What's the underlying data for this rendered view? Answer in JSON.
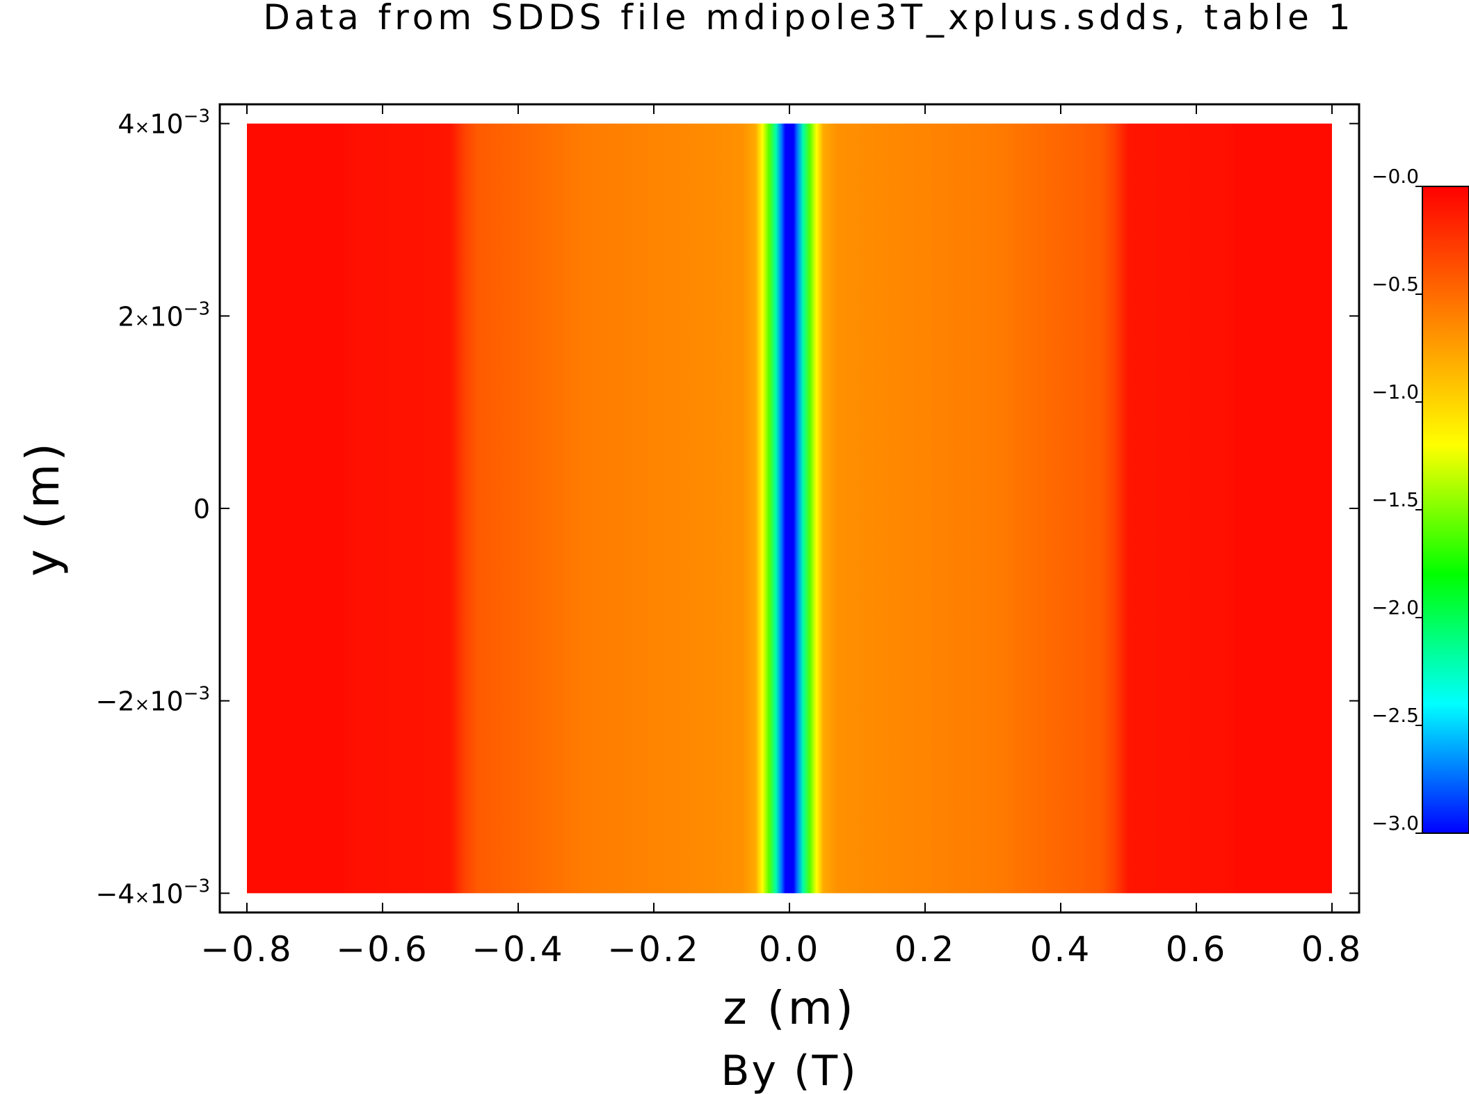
{
  "chart_data": {
    "type": "heatmap",
    "title": "Data from SDDS file mdipole3T_xplus.sdds, table 1",
    "xlabel": "z (m)",
    "ylabel": "y (m)",
    "zlabel": "By (T)",
    "xlim": [
      -0.84,
      0.84
    ],
    "ylim": [
      -0.0042,
      0.0042
    ],
    "data_extent": {
      "x": [
        -0.8,
        0.8
      ],
      "y": [
        -0.004,
        0.004
      ]
    },
    "x_ticks": [
      {
        "value": -0.8,
        "label": "−0.8"
      },
      {
        "value": -0.6,
        "label": "−0.6"
      },
      {
        "value": -0.4,
        "label": "−0.4"
      },
      {
        "value": -0.2,
        "label": "−0.2"
      },
      {
        "value": 0.0,
        "label": "0.0"
      },
      {
        "value": 0.2,
        "label": "0.2"
      },
      {
        "value": 0.4,
        "label": "0.4"
      },
      {
        "value": 0.6,
        "label": "0.6"
      },
      {
        "value": 0.8,
        "label": "0.8"
      }
    ],
    "y_ticks": [
      {
        "value": 0.004,
        "mant": "4",
        "times": "×",
        "base": "10",
        "exp": "−3"
      },
      {
        "value": 0.002,
        "mant": "2",
        "times": "×",
        "base": "10",
        "exp": "−3"
      },
      {
        "value": 0,
        "mant": "0",
        "times": "",
        "base": "",
        "exp": ""
      },
      {
        "value": -0.002,
        "mant": "−2",
        "times": "×",
        "base": "10",
        "exp": "−3"
      },
      {
        "value": -0.004,
        "mant": "−4",
        "times": "×",
        "base": "10",
        "exp": "−3"
      }
    ],
    "colorbar": {
      "range": [
        -3.0,
        0.0
      ],
      "ticks": [
        {
          "value": 0.0,
          "label": "−0.0"
        },
        {
          "value": -0.5,
          "label": "−0.5"
        },
        {
          "value": -1.0,
          "label": "−1.0"
        },
        {
          "value": -1.5,
          "label": "−1.5"
        },
        {
          "value": -2.0,
          "label": "−2.0"
        },
        {
          "value": -2.5,
          "label": "−2.5"
        },
        {
          "value": -3.0,
          "label": "−3.0"
        }
      ],
      "colors": [
        "#0000ff",
        "#00ffff",
        "#00ff00",
        "#ffff00",
        "#ff8000",
        "#ff0000"
      ]
    },
    "profile": {
      "z": [
        -0.8,
        -0.66,
        -0.65,
        -0.5,
        -0.48,
        -0.46,
        -0.4,
        -0.3,
        -0.2,
        -0.12,
        -0.07,
        -0.05,
        -0.04,
        -0.03,
        -0.02,
        -0.012,
        -0.006,
        0.0,
        0.006,
        0.012,
        0.02,
        0.03,
        0.04,
        0.05,
        0.07,
        0.12,
        0.2,
        0.3,
        0.4,
        0.46,
        0.48,
        0.5,
        0.65,
        0.66,
        0.8
      ],
      "By": [
        -0.05,
        -0.05,
        -0.07,
        -0.1,
        -0.3,
        -0.42,
        -0.48,
        -0.58,
        -0.62,
        -0.65,
        -0.68,
        -0.8,
        -1.2,
        -1.6,
        -2.2,
        -2.7,
        -3.0,
        -3.0,
        -3.0,
        -2.7,
        -2.2,
        -1.6,
        -1.2,
        -0.8,
        -0.68,
        -0.65,
        -0.62,
        -0.58,
        -0.48,
        -0.42,
        -0.3,
        -0.1,
        -0.07,
        -0.05,
        -0.05
      ]
    }
  }
}
